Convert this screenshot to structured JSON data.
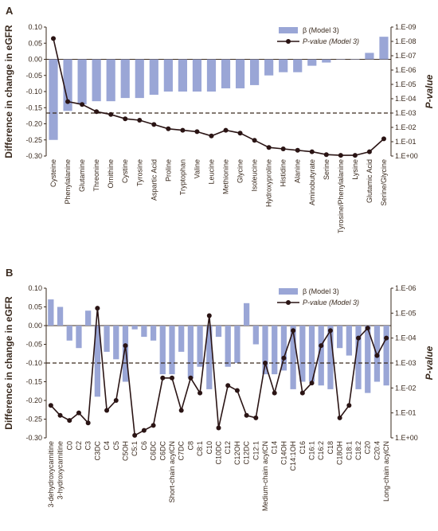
{
  "colors": {
    "bar": "#9aa6d6",
    "line": "#2a1414",
    "axis": "#3a2a1e",
    "threshold": "#3a2a1e",
    "text": "#3a2a1e"
  },
  "chart_data": [
    {
      "type": "bar+line",
      "panel_label": "A",
      "ylabel": "Difference in change in eGFR",
      "y2label": "P-value",
      "ylim": [
        -0.3,
        0.1
      ],
      "yticks": [
        "0.10",
        "0.05",
        "0.00",
        "-0.05",
        "-0.10",
        "-0.15",
        "-0.20",
        "-0.25",
        "-0.30"
      ],
      "y2_scale": "log (inverted, labels shown as P-values)",
      "y2ticks": [
        "1.E-09",
        "1.E-08",
        "1.E-07",
        "1.E-06",
        "1.E-05",
        "1.E-04",
        "1.E-03",
        "1.E-02",
        "1.E-01",
        "1.E+00"
      ],
      "threshold_pvalue": 0.001,
      "legend": {
        "bar": "β (Model 3)",
        "line": "P-value (Model 3)",
        "position": "top-right"
      },
      "categories": [
        "Cysteine",
        "Phenylalanine",
        "Glutamine",
        "Threonine",
        "Ornithine",
        "Cystine",
        "Tyrosine",
        "Aspartic Acid",
        "Proline",
        "Tryptophan",
        "Valine",
        "Leucine",
        "Methionine",
        "Glycine",
        "Isoleucine",
        "Hydroxyproline",
        "Histidine",
        "Alanine",
        "Aminobutyrate",
        "Serine",
        "Tyrosine/Phenylalanine",
        "Lysine",
        "Glutamic Acid",
        "Serine/Glycine"
      ],
      "series": [
        {
          "name": "β (Model 3)",
          "kind": "bar",
          "values": [
            -0.25,
            -0.16,
            -0.14,
            -0.13,
            -0.13,
            -0.12,
            -0.12,
            -0.11,
            -0.1,
            -0.1,
            -0.1,
            -0.1,
            -0.09,
            -0.09,
            -0.08,
            -0.05,
            -0.04,
            -0.04,
            -0.02,
            -0.01,
            0.0,
            0.0,
            0.02,
            0.07
          ]
        },
        {
          "name": "P-value (Model 3)",
          "kind": "line",
          "log10_values": [
            -8.2,
            -3.8,
            -3.6,
            -3.1,
            -2.9,
            -2.6,
            -2.5,
            -2.2,
            -1.9,
            -1.8,
            -1.7,
            -1.4,
            -1.8,
            -1.6,
            -1.1,
            -0.6,
            -0.5,
            -0.4,
            -0.3,
            -0.1,
            -0.05,
            -0.05,
            -0.3,
            -1.2
          ]
        }
      ]
    },
    {
      "type": "bar+line",
      "panel_label": "B",
      "ylabel": "Difference in change in eGFR",
      "y2label": "P-value",
      "ylim": [
        -0.3,
        0.1
      ],
      "yticks": [
        "0.10",
        "0.05",
        "0.00",
        "-0.05",
        "-0.10",
        "-0.15",
        "-0.20",
        "-0.25",
        "-0.30"
      ],
      "y2_scale": "log (inverted, labels shown as P-values)",
      "y2ticks": [
        "1.E-06",
        "1.E-05",
        "1.E-04",
        "1.E-03",
        "1.E-02",
        "1.E-01",
        "1.E+00"
      ],
      "threshold_pvalue": 0.001,
      "legend": {
        "bar": "β (Model 3)",
        "line": "P-value (Model 3)",
        "position": "top-right"
      },
      "categories": [
        "3-dehydroxycarnitine",
        "3-hydroxycarnitine",
        "C0",
        "C2",
        "C3",
        "C3DC",
        "C4",
        "C5",
        "C5OH",
        "C5:1",
        "C6",
        "C6DC",
        "C6DC",
        "Short-chain acylCN",
        "C7DC",
        "C8",
        "C8:1",
        "C10",
        "C10DC",
        "C12",
        "C12OH",
        "C12DC",
        "C12:1",
        "Medium-chain acylCN",
        "C14",
        "C14OH",
        "C14:1OH",
        "C16",
        "C16:1",
        "C16:2",
        "C18",
        "C18OH",
        "C18:1",
        "C18:2",
        "C20",
        "C20:4",
        "Long-chain acylCN"
      ],
      "series": [
        {
          "name": "β (Model 3)",
          "kind": "bar",
          "values": [
            0.07,
            0.05,
            -0.04,
            -0.06,
            0.04,
            -0.19,
            -0.07,
            -0.09,
            -0.15,
            -0.01,
            -0.03,
            -0.04,
            -0.13,
            -0.13,
            -0.07,
            -0.14,
            -0.11,
            -0.17,
            -0.03,
            -0.11,
            -0.1,
            0.06,
            -0.05,
            -0.13,
            -0.13,
            -0.12,
            -0.17,
            -0.15,
            -0.15,
            -0.16,
            -0.17,
            -0.06,
            -0.08,
            -0.17,
            -0.18,
            -0.15,
            -0.16
          ]
        },
        {
          "name": "P-value (Model 3)",
          "kind": "line",
          "log10_values": [
            -1.3,
            -0.9,
            -0.7,
            -1.0,
            -0.6,
            -5.2,
            -1.1,
            -1.5,
            -3.7,
            -0.1,
            -0.3,
            -0.5,
            -2.4,
            -2.4,
            -1.1,
            -2.4,
            -1.8,
            -4.9,
            -0.4,
            -2.1,
            -1.9,
            -0.9,
            -0.8,
            -3.0,
            -1.8,
            -3.2,
            -4.3,
            -1.8,
            -2.2,
            -3.7,
            -4.3,
            -0.8,
            -1.3,
            -4.0,
            -4.4,
            -3.3,
            -4.0
          ]
        }
      ]
    }
  ]
}
